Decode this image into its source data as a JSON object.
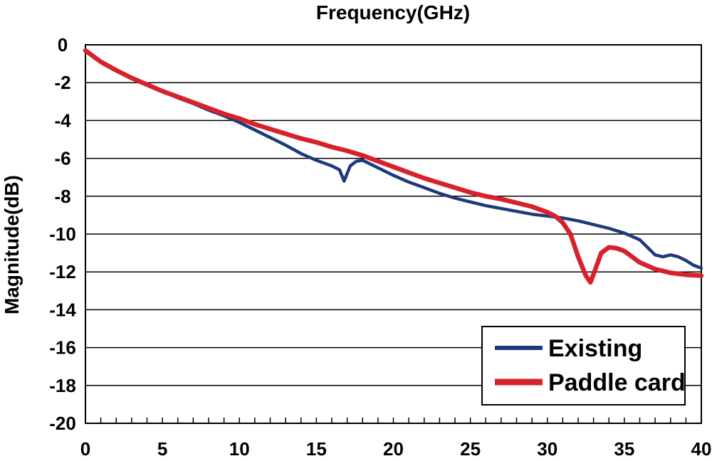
{
  "chart_data": {
    "type": "line",
    "title": "",
    "xlabel": "Frequency(GHz)",
    "ylabel": "Magnitude(dB)",
    "xlim": [
      0,
      40
    ],
    "ylim": [
      -20,
      0
    ],
    "x_ticks": [
      "0",
      "5",
      "10",
      "15",
      "20",
      "25",
      "30",
      "35",
      "40"
    ],
    "y_ticks": [
      "0",
      "-2",
      "-4",
      "-6",
      "-8",
      "-10",
      "-12",
      "-14",
      "-16",
      "-18",
      "-20"
    ],
    "grid": "horizontal",
    "legend_position": "bottom-right",
    "series": [
      {
        "name": "Existing",
        "color": "#1f3a7a",
        "x": [
          0,
          1,
          2,
          3,
          4,
          5,
          6,
          7,
          8,
          9,
          10,
          11,
          12,
          13,
          14,
          15,
          15.5,
          16,
          16.5,
          16.8,
          17.2,
          17.6,
          18,
          19,
          20,
          21,
          22,
          23,
          24,
          25,
          26,
          27,
          28,
          29,
          30,
          31,
          32,
          33,
          34,
          35,
          36,
          36.5,
          37,
          37.5,
          38,
          38.5,
          39,
          39.5,
          40
        ],
        "y": [
          -0.3,
          -0.9,
          -1.35,
          -1.75,
          -2.1,
          -2.45,
          -2.8,
          -3.1,
          -3.45,
          -3.75,
          -4.1,
          -4.5,
          -4.9,
          -5.3,
          -5.75,
          -6.1,
          -6.25,
          -6.4,
          -6.6,
          -7.2,
          -6.4,
          -6.15,
          -6.1,
          -6.5,
          -6.9,
          -7.25,
          -7.55,
          -7.85,
          -8.1,
          -8.3,
          -8.5,
          -8.65,
          -8.8,
          -8.95,
          -9.05,
          -9.15,
          -9.3,
          -9.5,
          -9.7,
          -9.95,
          -10.3,
          -10.7,
          -11.1,
          -11.2,
          -11.1,
          -11.2,
          -11.4,
          -11.65,
          -11.8
        ]
      },
      {
        "name": "Paddle card",
        "color": "#d7212b",
        "x": [
          0,
          1,
          2,
          3,
          4,
          5,
          6,
          7,
          8,
          9,
          10,
          11,
          12,
          13,
          14,
          15,
          16,
          17,
          18,
          19,
          20,
          21,
          22,
          23,
          24,
          25,
          26,
          27,
          28,
          29,
          30,
          30.5,
          31,
          31.5,
          32,
          32.5,
          32.8,
          33.1,
          33.5,
          34,
          34.5,
          35,
          36,
          37,
          38,
          39,
          40
        ],
        "y": [
          -0.3,
          -0.9,
          -1.35,
          -1.75,
          -2.1,
          -2.45,
          -2.75,
          -3.05,
          -3.35,
          -3.65,
          -3.9,
          -4.2,
          -4.45,
          -4.7,
          -4.95,
          -5.15,
          -5.4,
          -5.6,
          -5.85,
          -6.15,
          -6.45,
          -6.75,
          -7.05,
          -7.3,
          -7.55,
          -7.8,
          -8.0,
          -8.15,
          -8.35,
          -8.55,
          -8.85,
          -9.05,
          -9.4,
          -10.0,
          -11.2,
          -12.2,
          -12.55,
          -11.9,
          -11.0,
          -10.7,
          -10.75,
          -10.9,
          -11.5,
          -11.85,
          -12.05,
          -12.15,
          -12.2
        ]
      }
    ]
  }
}
